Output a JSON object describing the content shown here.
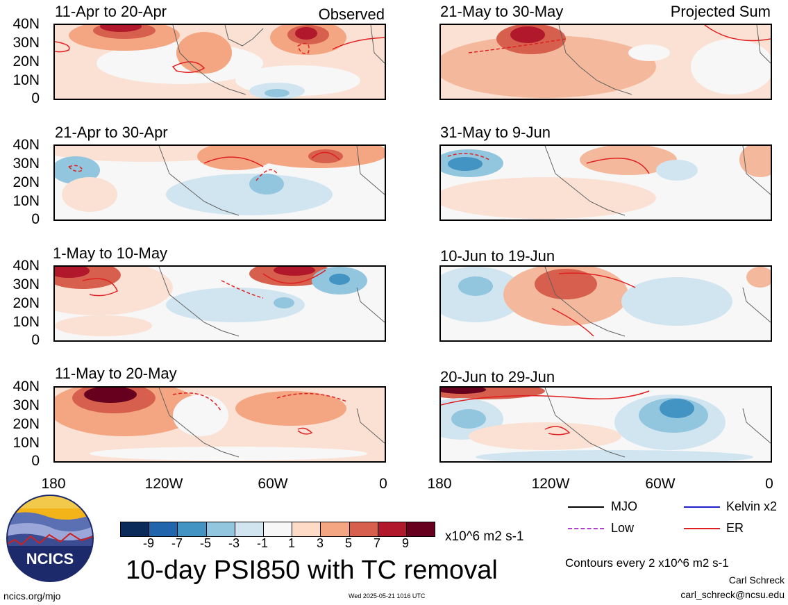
{
  "panels": [
    {
      "period": "11-Apr to 20-Apr",
      "tag": "Observed"
    },
    {
      "period": "21-May to 30-May",
      "tag": "Projected Sum"
    },
    {
      "period": "21-Apr to 30-Apr",
      "tag": ""
    },
    {
      "period": "31-May to 9-Jun",
      "tag": ""
    },
    {
      "period": "1-May to 10-May",
      "tag": ""
    },
    {
      "period": "10-Jun to 19-Jun",
      "tag": ""
    },
    {
      "period": "11-May to 20-May",
      "tag": ""
    },
    {
      "period": "20-Jun to 29-Jun",
      "tag": ""
    }
  ],
  "lat_labels": [
    "40N",
    "30N",
    "20N",
    "10N",
    "0"
  ],
  "lon_labels": [
    "180",
    "120W",
    "60W",
    "0"
  ],
  "colorbar": {
    "labels": [
      "-9",
      "-7",
      "-5",
      "-3",
      "-1",
      "1",
      "3",
      "5",
      "7",
      "9"
    ],
    "colors": [
      "#0b2c5a",
      "#2166ac",
      "#4393c3",
      "#92c5de",
      "#d1e5f0",
      "#f7f7f7",
      "#fddbc7",
      "#f4a582",
      "#d6604d",
      "#b2182b",
      "#67001f"
    ],
    "units": "x10^6 m2 s-1"
  },
  "legend": [
    {
      "label": "MJO",
      "color": "#000000",
      "style": "solid"
    },
    {
      "label": "Kelvin x2",
      "color": "#1f1fd0",
      "style": "solid"
    },
    {
      "label": "Low",
      "color": "#b040d0",
      "style": "dashed"
    },
    {
      "label": "ER",
      "color": "#e02020",
      "style": "solid"
    }
  ],
  "title": "10-day PSI850 with TC removal",
  "contour_note": "Contours every 2 x10^6 m2 s-1",
  "author": "Carl Schreck",
  "email": "carl_schreck@ncsu.edu",
  "url": "ncics.org/mjo",
  "timestamp": "Wed 2025-05-21 1016 UTC",
  "logo_text": "NCICS"
}
